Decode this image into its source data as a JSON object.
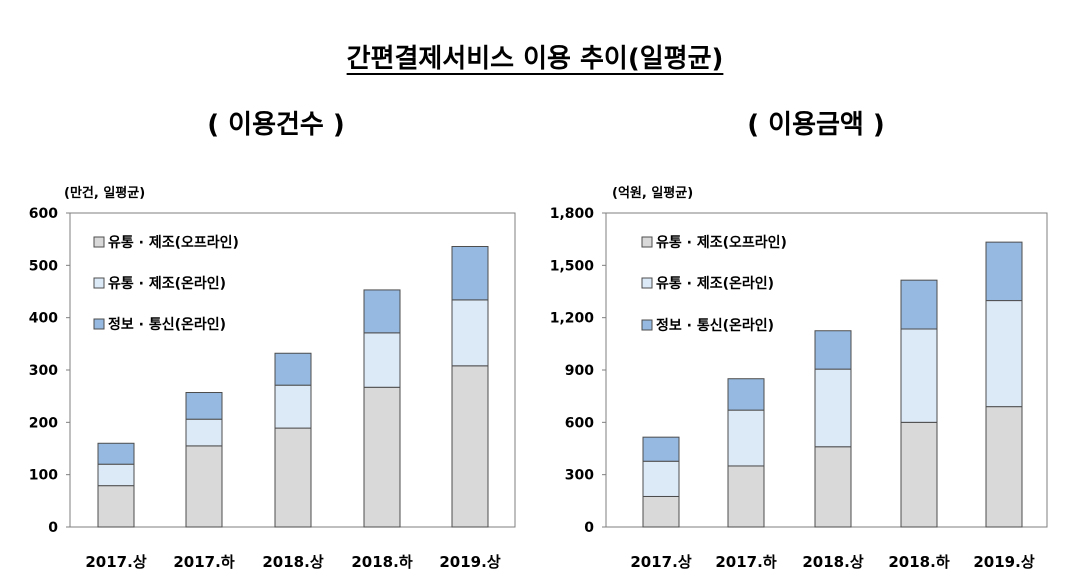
{
  "title": "간편결제서비스 이용 추이(일평균)",
  "colors": {
    "offline": "#d9d9d9",
    "online": "#dce9f6",
    "telecom": "#95b9e1",
    "stroke": "#4d4d4d"
  },
  "chart_data": [
    {
      "type": "bar",
      "stacked": true,
      "title": "( 이용건수 )",
      "unit_label": "(만건, 일평균)",
      "categories": [
        "2017.상",
        "2017.하",
        "2018.상",
        "2018.하",
        "2019.상"
      ],
      "ylim": [
        0,
        600
      ],
      "yticks": [
        0,
        100,
        200,
        300,
        400,
        500,
        600
      ],
      "ytick_labels": [
        "0",
        "100",
        "200",
        "300",
        "400",
        "500",
        "600"
      ],
      "legend_position": "top-left",
      "series": [
        {
          "name": "유통 · 제조(오프라인)",
          "key": "offline",
          "values": [
            79,
            155,
            189,
            267,
            308
          ]
        },
        {
          "name": "유통 · 제조(온라인)",
          "key": "online",
          "values": [
            41,
            51,
            82,
            104,
            126
          ]
        },
        {
          "name": "정보 · 통신(온라인)",
          "key": "telecom",
          "values": [
            40,
            51,
            61,
            82,
            102
          ]
        }
      ]
    },
    {
      "type": "bar",
      "stacked": true,
      "title": "( 이용금액 )",
      "unit_label": "(억원, 일평균)",
      "categories": [
        "2017.상",
        "2017.하",
        "2018.상",
        "2018.하",
        "2019.상"
      ],
      "ylim": [
        0,
        1800
      ],
      "yticks": [
        0,
        300,
        600,
        900,
        1200,
        1500,
        1800
      ],
      "ytick_labels": [
        "0",
        "300",
        "600",
        "900",
        "1,200",
        "1,500",
        "1,800"
      ],
      "legend_position": "top-left",
      "series": [
        {
          "name": "유통 · 제조(오프라인)",
          "key": "offline",
          "values": [
            175,
            350,
            460,
            600,
            690
          ]
        },
        {
          "name": "유통 · 제조(온라인)",
          "key": "online",
          "values": [
            202,
            320,
            445,
            535,
            608
          ]
        },
        {
          "name": "정보 · 통신(온라인)",
          "key": "telecom",
          "values": [
            138,
            180,
            220,
            280,
            335
          ]
        }
      ]
    }
  ]
}
